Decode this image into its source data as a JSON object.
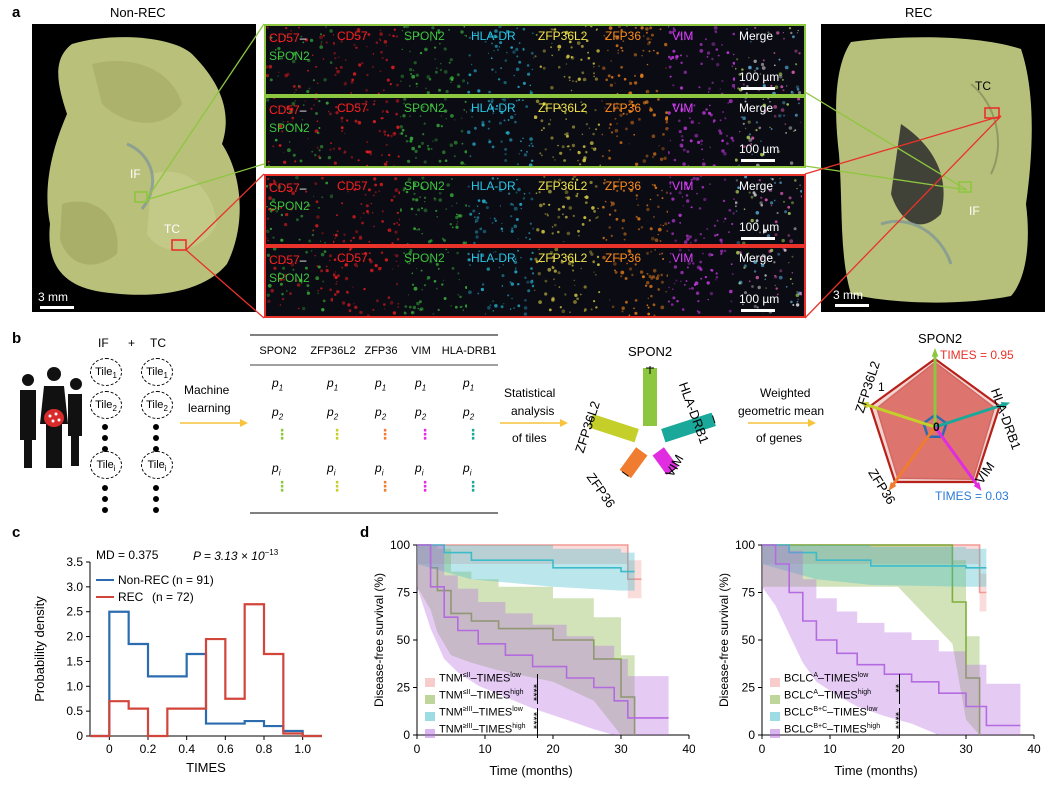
{
  "panel_letters": {
    "a": "a",
    "b": "b",
    "c": "c",
    "d": "d"
  },
  "panel_a": {
    "left_title": "Non-REC",
    "right_title": "REC",
    "left_regions": {
      "if": "IF",
      "tc": "TC"
    },
    "right_regions": {
      "if": "IF",
      "tc": "TC"
    },
    "tissue_scale": "3 mm",
    "stain_scale": "100 µm",
    "stain_labels": [
      "CD57",
      "CD57",
      "SPON2",
      "HLA-DR",
      "ZFP36L2",
      "ZFP36",
      "VIM",
      "Merge"
    ],
    "cd57_spon2": {
      "cd57": "CD57",
      "dash": "–",
      "spon2": "SPON2"
    },
    "stain_colors": [
      "#ff2020",
      "#ff2020",
      "#3dc43d",
      "#28c8e8",
      "#f2e64a",
      "#ff8c1a",
      "#e040ff",
      "#ffffff"
    ],
    "row_border_colors": [
      "#8dc63f",
      "#8dc63f",
      "#e8322a",
      "#e8322a"
    ]
  },
  "panel_b": {
    "if_label": "IF",
    "plus": "+",
    "tc_label": "TC",
    "tile_1": "Tile",
    "tile_2": "Tile",
    "tile_i": "Tile",
    "sub_1": "1",
    "sub_2": "2",
    "sub_i": "i",
    "ml_line1": "Machine",
    "ml_line2": "learning",
    "table_headers": [
      "SPON2",
      "ZFP36L2",
      "ZFP36",
      "VIM",
      "HLA-DRB1"
    ],
    "row_p1": "p",
    "row_p2": "p",
    "row_pi": "p",
    "vdots": "⋮",
    "stat_line1": "Statistical",
    "stat_line2": "analysis",
    "stat_line3": "of tiles",
    "star_genes": [
      "SPON2",
      "HLA-DRB1",
      "VIM",
      "ZFP36",
      "ZFP36L2"
    ],
    "wgm_line1": "Weighted",
    "wgm_line2": "geometric mean",
    "wgm_line3": "of genes",
    "radar_genes": [
      "SPON2",
      "HLA-DRB1",
      "VIM",
      "ZFP36",
      "ZFP36L2"
    ],
    "radar_one": "1",
    "radar_zero": "0",
    "times_high": "TIMES = 0.95",
    "times_low": "TIMES = 0.03",
    "colors": {
      "spon2": "#8dc63f",
      "zfp36l2": "#c4cf2a",
      "zfp36": "#f07c30",
      "vim": "#e02de0",
      "hla": "#1aa89a",
      "arrow": "#f7c23c"
    },
    "radar_values": {
      "spon2": 0.95,
      "hla": 0.92,
      "vim": 0.95,
      "zfp36": 0.93,
      "zfp36l2": 0.9
    }
  },
  "panel_c": {
    "md_text": "MD = 0.375",
    "p_text": "P = 3.13 × 10",
    "p_exp": "−13",
    "legend": [
      {
        "name": "Non-REC",
        "n_text": "(n = 91)",
        "color": "#2b6cb0"
      },
      {
        "name": "REC",
        "n_text": "(n = 72)",
        "color": "#d2453a"
      }
    ],
    "chart_data": {
      "type": "histogram",
      "xlabel": "TIMES",
      "ylabel": "Probability density",
      "xlim": [
        -0.1,
        1.1
      ],
      "ylim": [
        0,
        3.5
      ],
      "xticks": [
        "0",
        "0.2",
        "0.4",
        "0.6",
        "0.8",
        "1.0"
      ],
      "yticks": [
        "0",
        "0.5",
        "1.0",
        "1.5",
        "2.0",
        "2.5",
        "3.0",
        "3.5"
      ],
      "bin_edges": [
        0.0,
        0.1,
        0.2,
        0.3,
        0.4,
        0.5,
        0.6,
        0.7,
        0.8,
        0.9,
        1.0
      ],
      "series": [
        {
          "name": "Non-REC",
          "values": [
            2.5,
            1.85,
            1.2,
            1.2,
            1.65,
            0.25,
            0.25,
            0.3,
            0.2,
            0.1
          ]
        },
        {
          "name": "REC",
          "values": [
            0.7,
            0.55,
            0.0,
            0.55,
            0.55,
            1.95,
            0.75,
            2.65,
            1.65,
            0.05
          ]
        }
      ]
    }
  },
  "panel_d": {
    "left": {
      "ylabel": "Disease-free survival (%)",
      "xlabel": "Time (months)",
      "legend": [
        {
          "base": "TNM",
          "sup": "≤II",
          "mid": "–TIMES",
          "sup2": "low",
          "color": "#f29a96"
        },
        {
          "base": "TNM",
          "sup": "≤II",
          "mid": "–TIMES",
          "sup2": "high",
          "color": "#7fae3a"
        },
        {
          "base": "TNM",
          "sup": "≥III",
          "mid": "–TIMES",
          "sup2": "low",
          "color": "#3dbbc8"
        },
        {
          "base": "TNM",
          "sup": "≥III",
          "mid": "–TIMES",
          "sup2": "high",
          "color": "#b46be0"
        }
      ],
      "sig": [
        "****",
        "****"
      ],
      "chart_data": {
        "type": "line",
        "xlim": [
          0,
          40
        ],
        "ylim": [
          0,
          100
        ],
        "xticks": [
          "0",
          "10",
          "20",
          "30",
          "40"
        ],
        "yticks": [
          "0",
          "25",
          "50",
          "75",
          "100"
        ],
        "series": [
          {
            "name": "TNM≤II–TIMESlow",
            "x": [
              0,
              31,
              31,
              33
            ],
            "y": [
              100,
              100,
              82,
              82
            ]
          },
          {
            "name": "TNM≤II–TIMEShigh",
            "x": [
              0,
              2,
              3,
              5,
              8,
              12,
              20,
              26,
              30,
              32
            ],
            "y": [
              100,
              88,
              76,
              64,
              60,
              56,
              50,
              40,
              20,
              0
            ]
          },
          {
            "name": "TNM≥III–TIMESlow",
            "x": [
              0,
              4,
              8,
              20,
              30,
              32
            ],
            "y": [
              100,
              96,
              92,
              88,
              86,
              86
            ]
          },
          {
            "name": "TNM≥III–TIMEShigh",
            "x": [
              0,
              2,
              4,
              6,
              9,
              13,
              17,
              22,
              26,
              29,
              31,
              37
            ],
            "y": [
              100,
              78,
              62,
              55,
              48,
              42,
              36,
              30,
              25,
              18,
              9,
              9
            ]
          }
        ]
      }
    },
    "right": {
      "ylabel": "Disease-free survival (%)",
      "xlabel": "Time (months)",
      "legend": [
        {
          "base": "BCLC",
          "sup": "A",
          "mid": "–TIMES",
          "sup2": "low",
          "color": "#f29a96"
        },
        {
          "base": "BCLC",
          "sup": "A",
          "mid": "–TIMES",
          "sup2": "high",
          "color": "#7fae3a"
        },
        {
          "base": "BCLC",
          "sup": "B+C",
          "mid": "–TIMES",
          "sup2": "low",
          "color": "#3dbbc8"
        },
        {
          "base": "BCLC",
          "sup": "B+C",
          "mid": "–TIMES",
          "sup2": "high",
          "color": "#b46be0"
        }
      ],
      "sig": [
        "**",
        "****"
      ],
      "chart_data": {
        "type": "line",
        "xlim": [
          0,
          40
        ],
        "ylim": [
          0,
          100
        ],
        "xticks": [
          "0",
          "10",
          "20",
          "30",
          "40"
        ],
        "yticks": [
          "0",
          "25",
          "50",
          "75",
          "100"
        ],
        "series": [
          {
            "name": "BCLCA–TIMESlow",
            "x": [
              0,
              32,
              32,
              33
            ],
            "y": [
              100,
              100,
              75,
              75
            ]
          },
          {
            "name": "BCLCA–TIMEShigh",
            "x": [
              0,
              20,
              28,
              30,
              32
            ],
            "y": [
              100,
              100,
              70,
              30,
              0
            ]
          },
          {
            "name": "BCLCB+C–TIMESlow",
            "x": [
              0,
              4,
              8,
              16,
              30,
              33
            ],
            "y": [
              100,
              96,
              92,
              89,
              88,
              88
            ]
          },
          {
            "name": "BCLCB+C–TIMEShigh",
            "x": [
              0,
              2,
              4,
              6,
              8,
              11,
              14,
              18,
              22,
              26,
              30,
              33,
              38
            ],
            "y": [
              100,
              90,
              75,
              60,
              50,
              43,
              37,
              32,
              28,
              22,
              15,
              5,
              5
            ]
          }
        ]
      }
    }
  }
}
